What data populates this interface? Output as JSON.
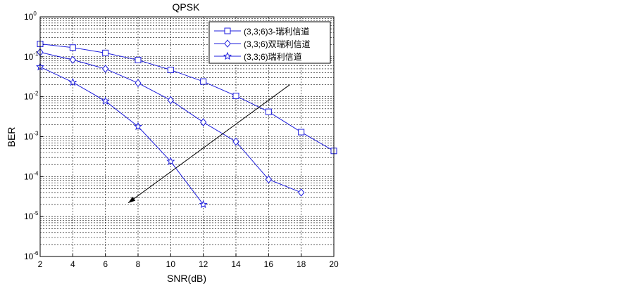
{
  "chart_data": {
    "type": "line",
    "title": "QPSK",
    "xlabel": "SNR(dB)",
    "ylabel": "BER",
    "xlim": [
      2,
      20
    ],
    "ylim": [
      1e-06,
      1
    ],
    "y_scale": "log",
    "grid": true,
    "legend_position": "top-right",
    "x_ticks": [
      "2",
      "4",
      "6",
      "8",
      "10",
      "12",
      "14",
      "16",
      "18",
      "20"
    ],
    "y_ticks": [
      {
        "base": "10",
        "exp": "0"
      },
      {
        "base": "10",
        "exp": "-1"
      },
      {
        "base": "10",
        "exp": "-2"
      },
      {
        "base": "10",
        "exp": "-3"
      },
      {
        "base": "10",
        "exp": "-4"
      },
      {
        "base": "10",
        "exp": "-5"
      },
      {
        "base": "10",
        "exp": "-6"
      }
    ],
    "colors": {
      "series": "#1c1cdc",
      "arrow": "#000000",
      "grid": "#000000",
      "axis": "#000000"
    },
    "series": [
      {
        "name": "(3,3;6)3-瑞利信道",
        "marker": "square",
        "x": [
          2,
          4,
          6,
          8,
          10,
          12,
          14,
          16,
          18,
          20
        ],
        "y": [
          0.21,
          0.17,
          0.125,
          0.083,
          0.047,
          0.024,
          0.0105,
          0.0042,
          0.0013,
          0.00044
        ]
      },
      {
        "name": "(3,3;6)双瑞利信道",
        "marker": "diamond",
        "x": [
          2,
          4,
          6,
          8,
          10,
          12,
          14,
          16,
          18
        ],
        "y": [
          0.13,
          0.084,
          0.05,
          0.022,
          0.0082,
          0.0023,
          0.00075,
          8.5e-05,
          4e-05
        ]
      },
      {
        "name": "(3,3;6)瑞利信道",
        "marker": "star",
        "x": [
          2,
          4,
          6,
          8,
          10,
          12
        ],
        "y": [
          0.056,
          0.023,
          0.0078,
          0.0018,
          0.00024,
          2e-05
        ]
      }
    ],
    "annotation": {
      "type": "arrow",
      "from": [
        17.3,
        0.02
      ],
      "to": [
        7.4,
        2.2e-05
      ]
    }
  }
}
